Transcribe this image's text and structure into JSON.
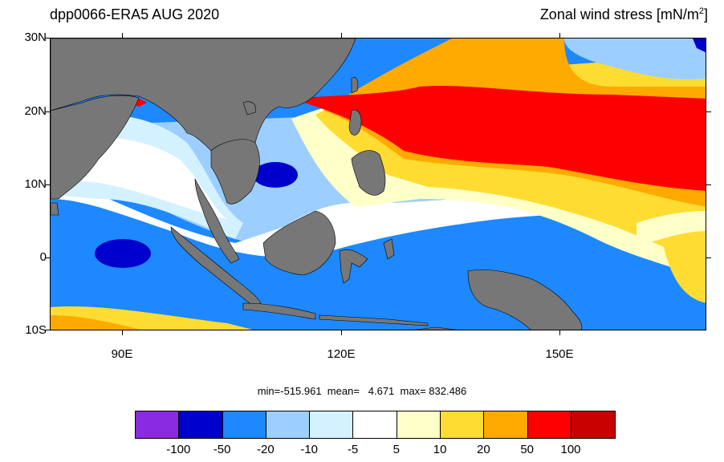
{
  "header": {
    "left_title": "dpp0066-ERA5  AUG 2020",
    "right_title_main": "Zonal wind stress [mN/m",
    "right_title_sup": "2",
    "right_title_end": "]"
  },
  "map": {
    "lat_labels": [
      "30N",
      "20N",
      "10N",
      "0",
      "10S"
    ],
    "lon_labels": [
      "90E",
      "120E",
      "150E"
    ],
    "land_color": "#777777",
    "ocean_base_color": "#1e88ff"
  },
  "stats": {
    "text": "min=-515.961  mean=   4.671  max= 832.486"
  },
  "colorbar": {
    "colors": [
      "#8a2be2",
      "#0000cd",
      "#1e88ff",
      "#9ccfff",
      "#d4f1ff",
      "#ffffff",
      "#ffffc8",
      "#ffdc32",
      "#ffaa00",
      "#ff0000",
      "#c80000"
    ],
    "labels": [
      "-100",
      "-50",
      "-20",
      "-10",
      "-5",
      "5",
      "10",
      "20",
      "50",
      "100"
    ]
  }
}
